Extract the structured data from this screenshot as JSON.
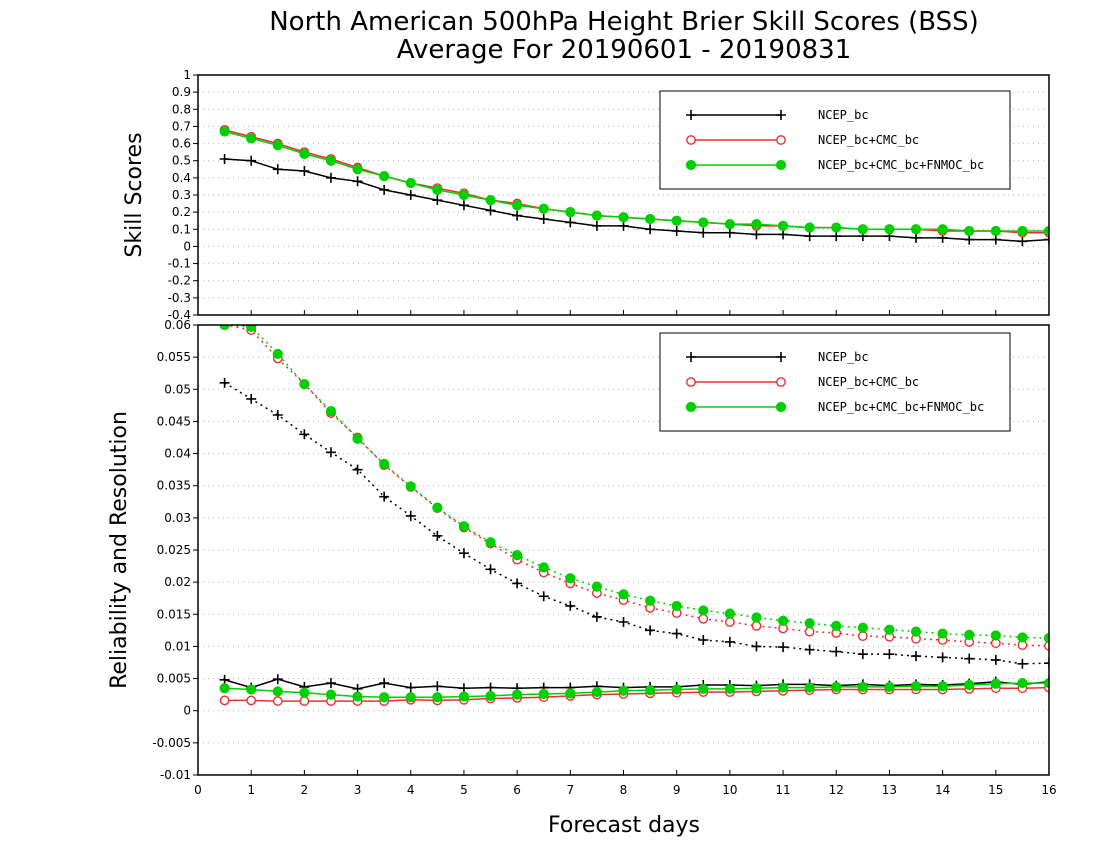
{
  "title_line1": "North American 500hPa Height Brier Skill Scores (BSS)",
  "title_line2": "Average For 20190601 - 20190831",
  "xlabel": "Forecast days",
  "colors": {
    "ncep": "#000000",
    "cmc": "#e83030",
    "fnmoc": "#00d000"
  },
  "chart_data": [
    {
      "type": "line",
      "ylabel": "Skill Scores",
      "xlim": [
        0,
        16
      ],
      "ylim": [
        -0.4,
        1
      ],
      "x_ticks": [
        0,
        1,
        2,
        3,
        4,
        5,
        6,
        7,
        8,
        9,
        10,
        11,
        12,
        13,
        14,
        15,
        16
      ],
      "x_tick_labels": [
        "0",
        "1",
        "2",
        "3",
        "4",
        "5",
        "6",
        "7",
        "8",
        "9",
        "10",
        "11",
        "12",
        "13",
        "14",
        "15",
        "16"
      ],
      "y_ticks": [
        -0.4,
        -0.3,
        -0.2,
        -0.1,
        0,
        0.1,
        0.2,
        0.3,
        0.4,
        0.5,
        0.6,
        0.7,
        0.8,
        0.9,
        1
      ],
      "y_tick_labels": [
        "-0.4",
        "-0.3",
        "-0.2",
        "-0.1",
        "0",
        "0.1",
        "0.2",
        "0.3",
        "0.4",
        "0.5",
        "0.6",
        "0.7",
        "0.8",
        "0.9",
        "1"
      ],
      "grid": true,
      "legend_position": "top-right",
      "x": [
        0.5,
        1,
        1.5,
        2,
        2.5,
        3,
        3.5,
        4,
        4.5,
        5,
        5.5,
        6,
        6.5,
        7,
        7.5,
        8,
        8.5,
        9,
        9.5,
        10,
        10.5,
        11,
        11.5,
        12,
        12.5,
        13,
        13.5,
        14,
        14.5,
        15,
        15.5,
        16
      ],
      "series": [
        {
          "name": "NCEP_bc",
          "color_key": "ncep",
          "marker": "plus",
          "values": [
            0.51,
            0.5,
            0.45,
            0.44,
            0.4,
            0.38,
            0.33,
            0.3,
            0.27,
            0.24,
            0.21,
            0.18,
            0.16,
            0.14,
            0.12,
            0.12,
            0.1,
            0.09,
            0.08,
            0.08,
            0.07,
            0.07,
            0.06,
            0.06,
            0.06,
            0.06,
            0.05,
            0.05,
            0.04,
            0.04,
            0.03,
            0.04
          ]
        },
        {
          "name": "NCEP_bc+CMC_bc",
          "color_key": "cmc",
          "marker": "open-circle",
          "values": [
            0.68,
            0.64,
            0.6,
            0.55,
            0.51,
            0.46,
            0.41,
            0.37,
            0.34,
            0.31,
            0.27,
            0.25,
            0.22,
            0.2,
            0.18,
            0.17,
            0.16,
            0.15,
            0.14,
            0.13,
            0.12,
            0.12,
            0.11,
            0.11,
            0.1,
            0.1,
            0.1,
            0.09,
            0.09,
            0.09,
            0.08,
            0.08
          ]
        },
        {
          "name": "NCEP_bc+CMC_bc+FNMOC_bc",
          "color_key": "fnmoc",
          "marker": "filled-circle",
          "values": [
            0.67,
            0.63,
            0.59,
            0.54,
            0.5,
            0.45,
            0.41,
            0.37,
            0.33,
            0.3,
            0.27,
            0.24,
            0.22,
            0.2,
            0.18,
            0.17,
            0.16,
            0.15,
            0.14,
            0.13,
            0.13,
            0.12,
            0.11,
            0.11,
            0.1,
            0.1,
            0.1,
            0.1,
            0.09,
            0.09,
            0.09,
            0.09
          ]
        }
      ]
    },
    {
      "type": "line",
      "ylabel": "Reliability and Resolution",
      "xlim": [
        0,
        16
      ],
      "ylim": [
        -0.01,
        0.06
      ],
      "x_ticks": [
        0,
        1,
        2,
        3,
        4,
        5,
        6,
        7,
        8,
        9,
        10,
        11,
        12,
        13,
        14,
        15,
        16
      ],
      "x_tick_labels": [
        "0",
        "1",
        "2",
        "3",
        "4",
        "5",
        "6",
        "7",
        "8",
        "9",
        "10",
        "11",
        "12",
        "13",
        "14",
        "15",
        "16"
      ],
      "y_ticks": [
        -0.01,
        -0.005,
        0,
        0.005,
        0.01,
        0.015,
        0.02,
        0.025,
        0.03,
        0.035,
        0.04,
        0.045,
        0.05,
        0.055,
        0.06
      ],
      "y_tick_labels": [
        "-0.01",
        "-0.005",
        "0",
        "0.005",
        "0.01",
        "0.015",
        "0.02",
        "0.025",
        "0.03",
        "0.035",
        "0.04",
        "0.045",
        "0.05",
        "0.055",
        "0.06"
      ],
      "grid": true,
      "legend_position": "top-right",
      "x": [
        0.5,
        1,
        1.5,
        2,
        2.5,
        3,
        3.5,
        4,
        4.5,
        5,
        5.5,
        6,
        6.5,
        7,
        7.5,
        8,
        8.5,
        9,
        9.5,
        10,
        10.5,
        11,
        11.5,
        12,
        12.5,
        13,
        13.5,
        14,
        14.5,
        15,
        15.5,
        16
      ],
      "series": [
        {
          "name": "NCEP_bc",
          "color_key": "ncep",
          "marker": "plus",
          "component": "resolution",
          "line": "dotted",
          "values": [
            0.051,
            0.0485,
            0.046,
            0.043,
            0.0402,
            0.0375,
            0.0333,
            0.0303,
            0.0272,
            0.0245,
            0.022,
            0.0198,
            0.0178,
            0.0163,
            0.0146,
            0.0138,
            0.0125,
            0.012,
            0.011,
            0.0107,
            0.01,
            0.0099,
            0.0095,
            0.0092,
            0.0088,
            0.0088,
            0.0085,
            0.0083,
            0.0081,
            0.0079,
            0.0073,
            0.0074
          ]
        },
        {
          "name": "NCEP_bc+CMC_bc",
          "color_key": "cmc",
          "marker": "open-circle",
          "component": "resolution",
          "line": "dotted",
          "values": [
            0.06,
            0.0592,
            0.0548,
            0.0508,
            0.0463,
            0.0425,
            0.0382,
            0.0348,
            0.0315,
            0.0285,
            0.026,
            0.0235,
            0.0215,
            0.0198,
            0.0183,
            0.0172,
            0.016,
            0.0152,
            0.0143,
            0.0138,
            0.0132,
            0.0128,
            0.0123,
            0.0121,
            0.0116,
            0.0115,
            0.0112,
            0.011,
            0.0107,
            0.0105,
            0.0102,
            0.0101
          ]
        },
        {
          "name": "NCEP_bc+CMC_bc+FNMOC_bc",
          "color_key": "fnmoc",
          "marker": "filled-circle",
          "component": "resolution",
          "line": "dotted",
          "values": [
            0.06,
            0.0597,
            0.0555,
            0.0508,
            0.0466,
            0.0423,
            0.0384,
            0.0349,
            0.0316,
            0.0287,
            0.0262,
            0.0242,
            0.0223,
            0.0206,
            0.0193,
            0.0181,
            0.0171,
            0.0163,
            0.0156,
            0.0151,
            0.0145,
            0.014,
            0.0136,
            0.0132,
            0.0129,
            0.0126,
            0.0123,
            0.012,
            0.0118,
            0.0117,
            0.0114,
            0.0113
          ]
        },
        {
          "name": "NCEP_bc",
          "color_key": "ncep",
          "marker": "plus",
          "component": "reliability",
          "line": "solid",
          "values": [
            0.0048,
            0.0036,
            0.0049,
            0.0037,
            0.0043,
            0.0034,
            0.0043,
            0.0036,
            0.0038,
            0.0035,
            0.0036,
            0.0035,
            0.0036,
            0.0036,
            0.0038,
            0.0036,
            0.0037,
            0.0037,
            0.004,
            0.004,
            0.0039,
            0.0041,
            0.0041,
            0.0039,
            0.0041,
            0.0039,
            0.0041,
            0.004,
            0.0042,
            0.0045,
            0.0041,
            0.0045
          ]
        },
        {
          "name": "NCEP_bc+CMC_bc",
          "color_key": "cmc",
          "marker": "open-circle",
          "component": "reliability",
          "line": "solid",
          "values": [
            0.0016,
            0.0016,
            0.0015,
            0.0015,
            0.0015,
            0.0015,
            0.0015,
            0.0017,
            0.0016,
            0.0017,
            0.0019,
            0.002,
            0.0021,
            0.0023,
            0.0025,
            0.0026,
            0.0027,
            0.0028,
            0.0029,
            0.0029,
            0.003,
            0.0031,
            0.0032,
            0.0033,
            0.0033,
            0.0033,
            0.0033,
            0.0033,
            0.0034,
            0.0035,
            0.0035,
            0.0036
          ]
        },
        {
          "name": "NCEP_bc+CMC_bc+FNMOC_bc",
          "color_key": "fnmoc",
          "marker": "filled-circle",
          "component": "reliability",
          "line": "solid",
          "values": [
            0.0035,
            0.0033,
            0.003,
            0.0028,
            0.0025,
            0.0022,
            0.0021,
            0.0021,
            0.0021,
            0.0022,
            0.0023,
            0.0025,
            0.0026,
            0.0027,
            0.0029,
            0.0031,
            0.0032,
            0.0033,
            0.0034,
            0.0034,
            0.0035,
            0.0036,
            0.0036,
            0.0037,
            0.0037,
            0.0037,
            0.0038,
            0.0038,
            0.004,
            0.0042,
            0.0043,
            0.0043
          ]
        }
      ]
    }
  ]
}
